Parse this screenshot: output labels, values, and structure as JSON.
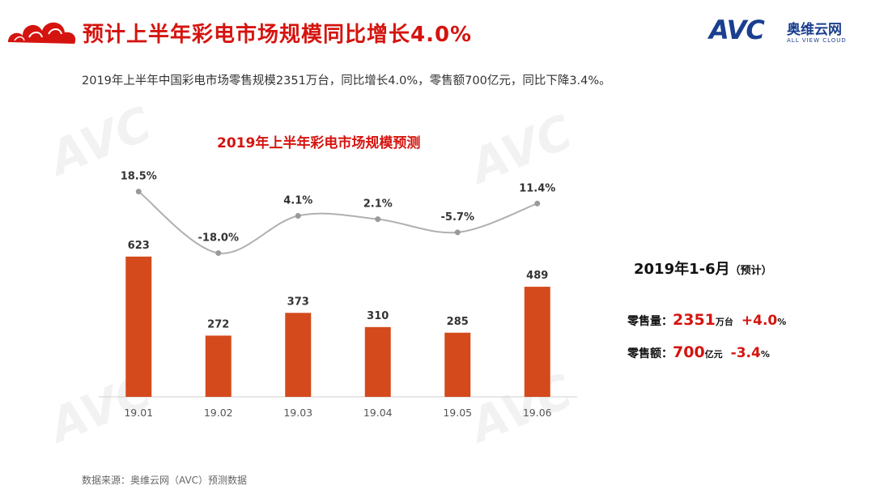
{
  "header": {
    "title": "预计上半年彩电市场规模同比增长4.0%",
    "logo_main": "AVC",
    "logo_cn": "奥维云网",
    "logo_en": "ALL VIEW CLOUD"
  },
  "subtitle": "2019年上半年中国彩电市场零售规模2351万台，同比增长4.0%，零售额700亿元，同比下降3.4%。",
  "chart_data": {
    "type": "bar",
    "title": "2019年上半年彩电市场规模预测",
    "categories": [
      "19.01",
      "19.02",
      "19.03",
      "19.04",
      "19.05",
      "19.06"
    ],
    "series": [
      {
        "values": [
          623,
          272,
          373,
          310,
          285,
          489
        ],
        "color": "#d44a1c"
      },
      {
        "type": "line",
        "values": [
          18.5,
          -18.0,
          4.1,
          2.1,
          -5.7,
          11.4
        ],
        "labels": [
          "18.5%",
          "-18.0%",
          "4.1%",
          "2.1%",
          "-5.7%",
          "11.4%"
        ],
        "color": "#b0b0b0"
      }
    ],
    "bar_labels": [
      "623",
      "272",
      "373",
      "310",
      "285",
      "489"
    ],
    "grid": false,
    "legend": "none"
  },
  "summary": {
    "heading": "2019年1-6月",
    "heading_note": "（预计）",
    "volume_label": "零售量：",
    "volume_value": "2351",
    "volume_unit": "万台",
    "volume_change": "+4.0",
    "volume_change_unit": "%",
    "revenue_label": "零售额：",
    "revenue_value": "700",
    "revenue_unit": "亿元",
    "revenue_change": "-3.4",
    "revenue_change_unit": "%"
  },
  "source": "数据来源：奥维云网（AVC）预测数据",
  "colors": {
    "accent": "#d5140f",
    "bar": "#d44a1c",
    "line": "#b0b0b0",
    "brand": "#1a3f8f"
  }
}
